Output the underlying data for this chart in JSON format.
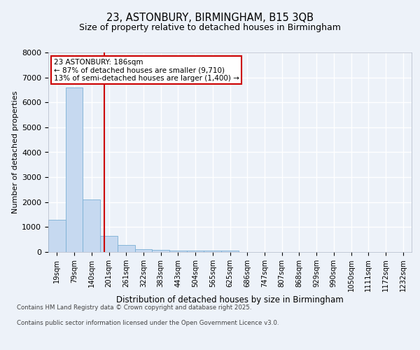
{
  "title1": "23, ASTONBURY, BIRMINGHAM, B15 3QB",
  "title2": "Size of property relative to detached houses in Birmingham",
  "xlabel": "Distribution of detached houses by size in Birmingham",
  "ylabel": "Number of detached properties",
  "categories": [
    "19sqm",
    "79sqm",
    "140sqm",
    "201sqm",
    "261sqm",
    "322sqm",
    "383sqm",
    "443sqm",
    "504sqm",
    "565sqm",
    "625sqm",
    "686sqm",
    "747sqm",
    "807sqm",
    "868sqm",
    "929sqm",
    "990sqm",
    "1050sqm",
    "1111sqm",
    "1172sqm",
    "1232sqm"
  ],
  "values": [
    1300,
    6600,
    2100,
    650,
    280,
    120,
    80,
    70,
    55,
    50,
    50,
    0,
    0,
    0,
    0,
    0,
    0,
    0,
    0,
    0,
    0
  ],
  "bar_color": "#c6d9f0",
  "bar_edge_color": "#7aafd4",
  "annotation_text": "23 ASTONBURY: 186sqm\n← 87% of detached houses are smaller (9,710)\n13% of semi-detached houses are larger (1,400) →",
  "annotation_box_color": "#ffffff",
  "annotation_box_edge": "#cc0000",
  "ylim": [
    0,
    8000
  ],
  "yticks": [
    0,
    1000,
    2000,
    3000,
    4000,
    5000,
    6000,
    7000,
    8000
  ],
  "footer1": "Contains HM Land Registry data © Crown copyright and database right 2025.",
  "footer2": "Contains public sector information licensed under the Open Government Licence v3.0.",
  "bg_color": "#edf2f9",
  "plot_bg_color": "#edf2f9",
  "grid_color": "#ffffff",
  "red_line_color": "#cc0000"
}
